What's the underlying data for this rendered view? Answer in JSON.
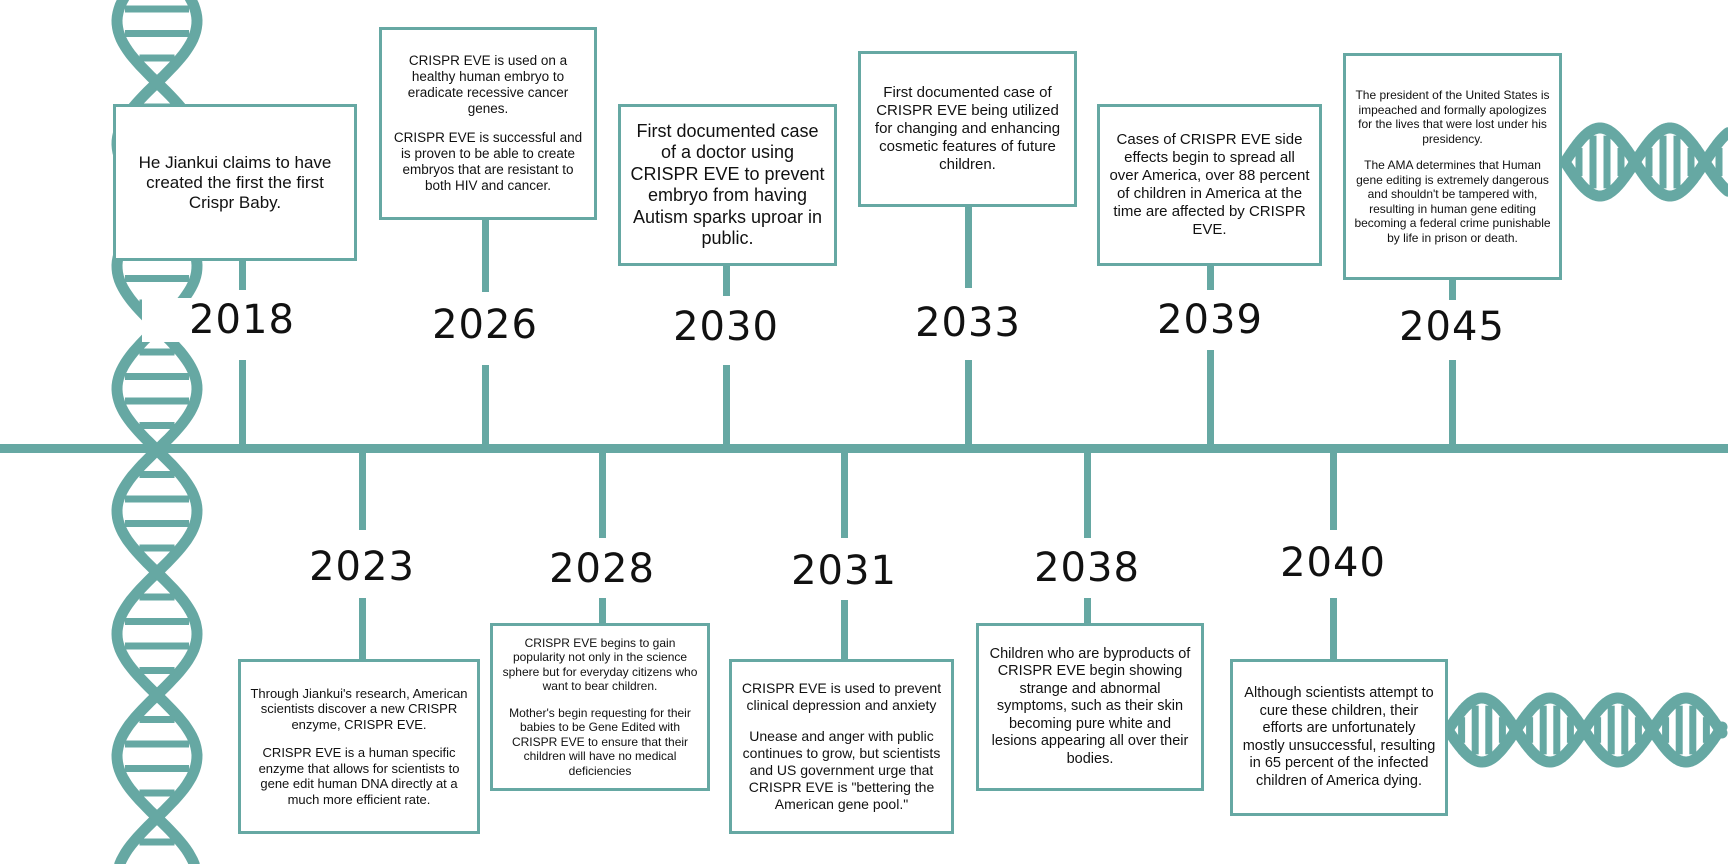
{
  "colors": {
    "teal": "#66a8a3",
    "text": "#111111",
    "background": "#ffffff"
  },
  "events_above": [
    {
      "year": "2018",
      "paragraphs": [
        "He Jiankui claims to have created the first the first Crispr Baby."
      ]
    },
    {
      "year": "2026",
      "paragraphs": [
        "CRISPR EVE is used on a healthy human embryo to eradicate recessive cancer genes.",
        "CRISPR EVE is successful and is proven to be able to create embryos that are resistant to both HIV and cancer."
      ]
    },
    {
      "year": "2030",
      "paragraphs": [
        "First documented case of a doctor using CRISPR EVE to prevent embryo from having Autism sparks uproar in public."
      ]
    },
    {
      "year": "2033",
      "paragraphs": [
        "First documented case of CRISPR EVE being utilized for changing and enhancing cosmetic features of future children."
      ]
    },
    {
      "year": "2039",
      "paragraphs": [
        "Cases of CRISPR EVE side effects begin to spread all over America, over 88 percent of children in America at the time are affected by CRISPR EVE."
      ]
    },
    {
      "year": "2045",
      "paragraphs": [
        "The president of the United States is impeached and formally apologizes for the lives that were lost under his presidency.",
        "The AMA determines that Human gene editing is extremely dangerous and shouldn't be tampered with, resulting in human gene editing becoming a federal crime punishable by life in prison or death."
      ]
    }
  ],
  "events_below": [
    {
      "year": "2023",
      "paragraphs": [
        "Through Jiankui's research, American scientists discover a new CRISPR enzyme, CRISPR  EVE.",
        "CRISPR EVE is a human specific enzyme that allows for scientists to gene edit human DNA directly at a much more efficient rate."
      ]
    },
    {
      "year": "2028",
      "paragraphs": [
        "CRISPR EVE begins to gain popularity not only in the science sphere but for everyday citizens who want to bear children.",
        "Mother's begin requesting for their babies to be Gene Edited with CRISPR EVE to ensure that their children will have no medical deficiencies"
      ]
    },
    {
      "year": "2031",
      "paragraphs": [
        "CRISPR EVE is used to prevent clinical depression and anxiety",
        "Unease and anger with public continues to grow, but scientists and US government urge that CRISPR EVE is \"bettering the American gene pool.\""
      ]
    },
    {
      "year": "2038",
      "paragraphs": [
        "Children who are byproducts of CRISPR EVE begin showing strange and abnormal symptoms, such as their skin becoming pure white and lesions appearing all over their bodies."
      ]
    },
    {
      "year": "2040",
      "paragraphs": [
        "Although scientists attempt to cure these children, their efforts are unfortunately mostly unsuccessful, resulting in 65 percent of the infected children of America dying."
      ]
    }
  ]
}
